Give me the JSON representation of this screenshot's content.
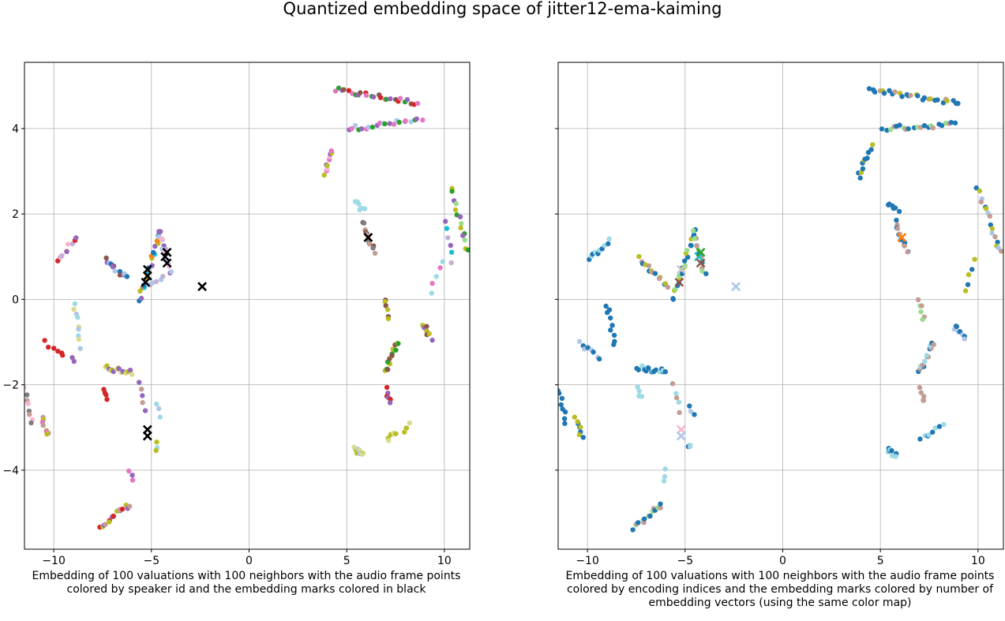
{
  "figure": {
    "title": "Quantized embedding space of jitter12-ema-kaiming"
  },
  "palette": [
    "#1f77b4",
    "#ff7f0e",
    "#2ca02c",
    "#d62728",
    "#9467bd",
    "#8c564b",
    "#e377c2",
    "#7f7f7f",
    "#bcbd22",
    "#17becf",
    "#aec7e8",
    "#ffbb78",
    "#98df8a",
    "#ff9896",
    "#c5b0d5",
    "#c49c94",
    "#f7b6d2",
    "#c7c7c7",
    "#dbdb8d",
    "#9edae5"
  ],
  "chart_data": [
    {
      "type": "scatter",
      "caption": "Embedding of 100 valuations with 100 neighbors with the audio frame points colored by speaker id and the embedding marks colored in black",
      "xlim": [
        -11.5,
        11.3
      ],
      "ylim": [
        -5.85,
        5.55
      ],
      "xticks": [
        -10,
        -5,
        0,
        5,
        10
      ],
      "yticks": [
        -4,
        -2,
        0,
        2,
        4
      ],
      "xtick_labels": [
        "−10",
        "−5",
        "0",
        "5",
        "10"
      ],
      "ytick_labels": [
        "−4",
        "−2",
        "0",
        "2",
        "4"
      ],
      "grid": true,
      "clusters": [
        {
          "x0": 4.4,
          "y0": 4.9,
          "x1": 8.6,
          "y1": 4.6,
          "colors": [
            6,
            2,
            4,
            5,
            3
          ],
          "n": 26
        },
        {
          "x0": 5.1,
          "y0": 4.0,
          "x1": 8.8,
          "y1": 4.2,
          "colors": [
            4,
            6,
            10,
            2
          ],
          "n": 22
        },
        {
          "x0": 3.9,
          "y0": 2.9,
          "x1": 4.3,
          "y1": 3.5,
          "colors": [
            8,
            6,
            16,
            4
          ],
          "n": 10
        },
        {
          "x0": 5.4,
          "y0": 2.25,
          "x1": 5.9,
          "y1": 2.1,
          "colors": [
            19
          ],
          "n": 6
        },
        {
          "x0": 5.8,
          "y0": 1.8,
          "x1": 6.4,
          "y1": 1.1,
          "colors": [
            5,
            7,
            15
          ],
          "n": 12
        },
        {
          "x0": 10.4,
          "y0": 2.6,
          "x1": 11.2,
          "y1": 1.1,
          "colors": [
            8,
            2,
            4,
            12
          ],
          "n": 14
        },
        {
          "x0": 10.1,
          "y0": 1.8,
          "x1": 10.4,
          "y1": 0.9,
          "colors": [
            4,
            9,
            14
          ],
          "n": 6
        },
        {
          "x0": 9.3,
          "y0": 0.2,
          "x1": 9.9,
          "y1": 0.9,
          "colors": [
            19,
            6
          ],
          "n": 5
        },
        {
          "x0": 8.9,
          "y0": -0.6,
          "x1": 9.3,
          "y1": -0.9,
          "colors": [
            8,
            4,
            5
          ],
          "n": 8
        },
        {
          "x0": 7.0,
          "y0": 0.0,
          "x1": 7.1,
          "y1": -0.5,
          "colors": [
            5,
            8
          ],
          "n": 6
        },
        {
          "x0": 7.0,
          "y0": -1.7,
          "x1": 7.6,
          "y1": -1.0,
          "colors": [
            8,
            2,
            5
          ],
          "n": 14
        },
        {
          "x0": 7.0,
          "y0": -2.1,
          "x1": 7.3,
          "y1": -2.4,
          "colors": [
            3,
            4
          ],
          "n": 6
        },
        {
          "x0": 7.1,
          "y0": -3.3,
          "x1": 7.5,
          "y1": -3.1,
          "colors": [
            8,
            18
          ],
          "n": 5
        },
        {
          "x0": 7.9,
          "y0": -3.1,
          "x1": 8.2,
          "y1": -2.9,
          "colors": [
            8,
            18
          ],
          "n": 4
        },
        {
          "x0": 5.4,
          "y0": -3.5,
          "x1": 5.8,
          "y1": -3.65,
          "colors": [
            8,
            18,
            10
          ],
          "n": 8
        },
        {
          "x0": -9.8,
          "y0": 0.9,
          "x1": -8.9,
          "y1": 1.4,
          "colors": [
            3,
            4,
            16,
            14
          ],
          "n": 10
        },
        {
          "x0": -7.4,
          "y0": 0.95,
          "x1": -6.3,
          "y1": 0.5,
          "colors": [
            5,
            4,
            10,
            0
          ],
          "n": 12
        },
        {
          "x0": -5.6,
          "y0": 0.0,
          "x1": -4.5,
          "y1": 1.6,
          "colors": [
            0,
            4,
            8,
            1,
            9
          ],
          "n": 22
        },
        {
          "x0": -4.6,
          "y0": 1.6,
          "x1": -4.0,
          "y1": 0.6,
          "colors": [
            4,
            10,
            14,
            16
          ],
          "n": 14
        },
        {
          "x0": -5.2,
          "y0": 0.3,
          "x1": -4.4,
          "y1": 0.5,
          "colors": [
            10,
            14
          ],
          "n": 6
        },
        {
          "x0": -9.0,
          "y0": -0.1,
          "x1": -8.6,
          "y1": -1.1,
          "colors": [
            19,
            18,
            10
          ],
          "n": 9
        },
        {
          "x0": -10.4,
          "y0": -1.0,
          "x1": -9.5,
          "y1": -1.3,
          "colors": [
            3
          ],
          "n": 6
        },
        {
          "x0": -9.0,
          "y0": -1.35,
          "x1": -9.0,
          "y1": -1.45,
          "colors": [
            4
          ],
          "n": 2
        },
        {
          "x0": -7.4,
          "y0": -1.6,
          "x1": -6.0,
          "y1": -1.7,
          "colors": [
            18,
            8,
            4
          ],
          "n": 16
        },
        {
          "x0": -7.5,
          "y0": -2.05,
          "x1": -7.2,
          "y1": -2.3,
          "colors": [
            3
          ],
          "n": 4
        },
        {
          "x0": -5.6,
          "y0": -2.0,
          "x1": -5.3,
          "y1": -2.6,
          "colors": [
            4,
            15
          ],
          "n": 5
        },
        {
          "x0": -11.5,
          "y0": -2.1,
          "x1": -11.1,
          "y1": -2.9,
          "colors": [
            16,
            7,
            15
          ],
          "n": 8
        },
        {
          "x0": -10.6,
          "y0": -2.8,
          "x1": -10.3,
          "y1": -3.2,
          "colors": [
            15,
            8,
            6
          ],
          "n": 8
        },
        {
          "x0": -4.7,
          "y0": -2.5,
          "x1": -4.6,
          "y1": -2.7,
          "colors": [
            19,
            10
          ],
          "n": 3
        },
        {
          "x0": -4.8,
          "y0": -3.4,
          "x1": -4.7,
          "y1": -3.5,
          "colors": [
            8,
            19
          ],
          "n": 3
        },
        {
          "x0": -6.1,
          "y0": -4.0,
          "x1": -6.0,
          "y1": -4.2,
          "colors": [
            6,
            4
          ],
          "n": 3
        },
        {
          "x0": -7.6,
          "y0": -5.35,
          "x1": -6.2,
          "y1": -4.8,
          "colors": [
            3,
            8,
            4,
            15
          ],
          "n": 16
        }
      ],
      "marks": [
        {
          "x": -5.2,
          "y": 0.7
        },
        {
          "x": -5.3,
          "y": 0.4
        },
        {
          "x": -5.2,
          "y": 0.55
        },
        {
          "x": -4.3,
          "y": 1.0
        },
        {
          "x": -4.2,
          "y": 1.1
        },
        {
          "x": -4.2,
          "y": 0.85
        },
        {
          "x": -2.4,
          "y": 0.3
        },
        {
          "x": 6.1,
          "y": 1.45
        },
        {
          "x": -5.2,
          "y": -3.05
        },
        {
          "x": -5.2,
          "y": -3.2
        }
      ],
      "mark_color": "#000000"
    },
    {
      "type": "scatter",
      "caption": "Embedding of 100 valuations with 100 neighbors with the audio frame points colored by encoding indices and the embedding marks colored by number of embedding vectors (using the same color map)",
      "xlim": [
        -11.5,
        11.3
      ],
      "ylim": [
        -5.85,
        5.55
      ],
      "xticks": [
        -10,
        -5,
        0,
        5,
        10
      ],
      "yticks": [
        -4,
        -2,
        0,
        2,
        4
      ],
      "xtick_labels": [
        "−10",
        "−5",
        "0",
        "5",
        "10"
      ],
      "ytick_labels": [],
      "grid": true,
      "clusters": [
        {
          "x0": 4.4,
          "y0": 4.9,
          "x1": 9.0,
          "y1": 4.6,
          "colors": [
            0,
            0,
            0,
            15,
            8
          ],
          "n": 28
        },
        {
          "x0": 5.1,
          "y0": 4.0,
          "x1": 8.8,
          "y1": 4.1,
          "colors": [
            0,
            0,
            12,
            15
          ],
          "n": 22
        },
        {
          "x0": 3.9,
          "y0": 2.9,
          "x1": 4.6,
          "y1": 3.6,
          "colors": [
            0,
            0,
            8
          ],
          "n": 12
        },
        {
          "x0": 5.4,
          "y0": 2.25,
          "x1": 5.9,
          "y1": 2.1,
          "colors": [
            0
          ],
          "n": 6
        },
        {
          "x0": 5.8,
          "y0": 1.8,
          "x1": 6.4,
          "y1": 1.1,
          "colors": [
            0,
            15
          ],
          "n": 12
        },
        {
          "x0": 10.0,
          "y0": 2.6,
          "x1": 11.2,
          "y1": 1.1,
          "colors": [
            0,
            8,
            10,
            15
          ],
          "n": 16
        },
        {
          "x0": 9.3,
          "y0": 0.2,
          "x1": 9.9,
          "y1": 0.9,
          "colors": [
            8,
            0
          ],
          "n": 5
        },
        {
          "x0": 8.8,
          "y0": -0.6,
          "x1": 9.3,
          "y1": -0.9,
          "colors": [
            0,
            10
          ],
          "n": 8
        },
        {
          "x0": 7.0,
          "y0": 0.0,
          "x1": 7.2,
          "y1": -0.5,
          "colors": [
            15,
            12
          ],
          "n": 6
        },
        {
          "x0": 7.0,
          "y0": -1.7,
          "x1": 7.7,
          "y1": -1.0,
          "colors": [
            0,
            15,
            19
          ],
          "n": 14
        },
        {
          "x0": 7.0,
          "y0": -2.1,
          "x1": 7.3,
          "y1": -2.4,
          "colors": [
            15
          ],
          "n": 5
        },
        {
          "x0": 7.1,
          "y0": -3.3,
          "x1": 8.2,
          "y1": -2.9,
          "colors": [
            0,
            19
          ],
          "n": 8
        },
        {
          "x0": 5.4,
          "y0": -3.5,
          "x1": 5.8,
          "y1": -3.65,
          "colors": [
            0,
            19
          ],
          "n": 8
        },
        {
          "x0": -10.0,
          "y0": 0.9,
          "x1": -8.9,
          "y1": 1.4,
          "colors": [
            0,
            19
          ],
          "n": 10
        },
        {
          "x0": -7.4,
          "y0": 0.95,
          "x1": -5.9,
          "y1": 0.3,
          "colors": [
            8,
            15,
            0
          ],
          "n": 14
        },
        {
          "x0": -5.6,
          "y0": 0.0,
          "x1": -4.5,
          "y1": 1.6,
          "colors": [
            0,
            0,
            8,
            12
          ],
          "n": 22
        },
        {
          "x0": -4.6,
          "y0": 1.6,
          "x1": -4.0,
          "y1": 0.6,
          "colors": [
            12,
            0,
            15
          ],
          "n": 14
        },
        {
          "x0": -9.0,
          "y0": -0.1,
          "x1": -8.6,
          "y1": -1.1,
          "colors": [
            0
          ],
          "n": 9
        },
        {
          "x0": -10.4,
          "y0": -1.0,
          "x1": -9.3,
          "y1": -1.4,
          "colors": [
            10,
            0
          ],
          "n": 8
        },
        {
          "x0": -7.4,
          "y0": -1.6,
          "x1": -6.0,
          "y1": -1.7,
          "colors": [
            0,
            0,
            19
          ],
          "n": 16
        },
        {
          "x0": -7.5,
          "y0": -2.05,
          "x1": -7.2,
          "y1": -2.3,
          "colors": [
            19
          ],
          "n": 4
        },
        {
          "x0": -5.6,
          "y0": -2.0,
          "x1": -5.3,
          "y1": -2.6,
          "colors": [
            15,
            19
          ],
          "n": 5
        },
        {
          "x0": -11.5,
          "y0": -2.1,
          "x1": -11.1,
          "y1": -2.9,
          "colors": [
            0
          ],
          "n": 8
        },
        {
          "x0": -10.6,
          "y0": -2.8,
          "x1": -10.3,
          "y1": -3.2,
          "colors": [
            8,
            0
          ],
          "n": 8
        },
        {
          "x0": -4.7,
          "y0": -2.5,
          "x1": -4.6,
          "y1": -2.7,
          "colors": [
            0,
            10
          ],
          "n": 3
        },
        {
          "x0": -4.8,
          "y0": -3.4,
          "x1": -4.7,
          "y1": -3.5,
          "colors": [
            19,
            0
          ],
          "n": 3
        },
        {
          "x0": -6.1,
          "y0": -4.0,
          "x1": -6.0,
          "y1": -4.2,
          "colors": [
            19
          ],
          "n": 3
        },
        {
          "x0": -7.6,
          "y0": -5.35,
          "x1": -6.2,
          "y1": -4.8,
          "colors": [
            0,
            12,
            15
          ],
          "n": 16
        }
      ],
      "marks": [
        {
          "x": -5.2,
          "y": 0.7,
          "color": "#c7c7c7"
        },
        {
          "x": -5.3,
          "y": 0.4,
          "color": "#8c564b"
        },
        {
          "x": -4.3,
          "y": 1.0,
          "color": "#17becf"
        },
        {
          "x": -4.2,
          "y": 1.1,
          "color": "#2ca02c"
        },
        {
          "x": -4.2,
          "y": 0.85,
          "color": "#8c564b"
        },
        {
          "x": -2.4,
          "y": 0.3,
          "color": "#aec7e8"
        },
        {
          "x": 6.1,
          "y": 1.45,
          "color": "#ff7f0e"
        },
        {
          "x": -5.2,
          "y": -3.05,
          "color": "#f7b6d2"
        },
        {
          "x": -5.2,
          "y": -3.2,
          "color": "#aec7e8"
        }
      ]
    }
  ]
}
